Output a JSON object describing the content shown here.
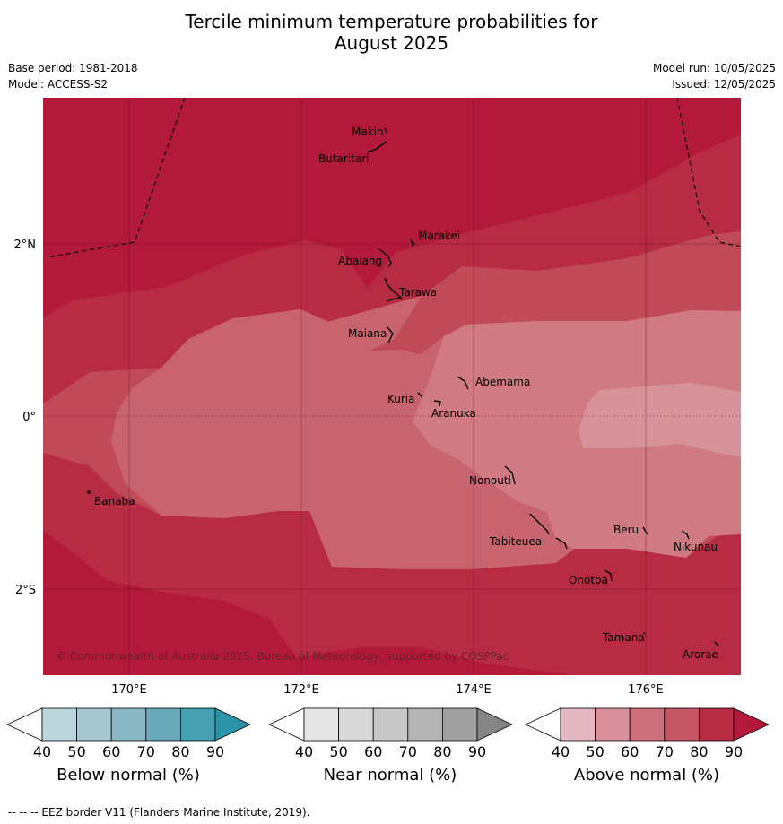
{
  "title_line1": "Tercile minimum temperature probabilities for",
  "title_line2": "August 2025",
  "base_period": "Base period: 1981-2018",
  "model": "Model: ACCESS-S2",
  "model_run": "Model run: 10/05/2025",
  "issued": "Issued: 12/05/2025",
  "copyright": "© Commonwealth of Australia 2025, Bureau of Meteorology, supported by COSPPac",
  "footer": "--  --  -- EEZ border V11 (Flanders Marine Institute, 2019).",
  "lat_labels": [
    "2°N",
    "0°",
    "2°S"
  ],
  "lon_labels": [
    "170°E",
    "172°E",
    "174°E",
    "176°E"
  ],
  "places": [
    {
      "name": "Makin",
      "lon": 173.0,
      "lat": 3.4
    },
    {
      "name": "Butaritari",
      "lon": 172.9,
      "lat": 3.05
    },
    {
      "name": "Marakei",
      "lon": 173.4,
      "lat": 2.05
    },
    {
      "name": "Abaiang",
      "lon": 172.95,
      "lat": 1.8
    },
    {
      "name": "Tarawa",
      "lon": 173.15,
      "lat": 1.4
    },
    {
      "name": "Maiana",
      "lon": 173.0,
      "lat": 0.95
    },
    {
      "name": "Abemama",
      "lon": 173.9,
      "lat": 0.38
    },
    {
      "name": "Kuria",
      "lon": 173.4,
      "lat": 0.22
    },
    {
      "name": "Aranuka",
      "lon": 173.6,
      "lat": 0.16
    },
    {
      "name": "Nonouti",
      "lon": 174.4,
      "lat": -0.65
    },
    {
      "name": "Banaba",
      "lon": 169.55,
      "lat": -0.86
    },
    {
      "name": "Tabiteuea",
      "lon": 174.8,
      "lat": -1.3
    },
    {
      "name": "Beru",
      "lon": 175.98,
      "lat": -1.35
    },
    {
      "name": "Nikunau",
      "lon": 176.45,
      "lat": -1.37
    },
    {
      "name": "Onotoa",
      "lon": 175.55,
      "lat": -1.8
    },
    {
      "name": "Tamana",
      "lon": 175.97,
      "lat": -2.5
    },
    {
      "name": "Arorae",
      "lon": 176.8,
      "lat": -2.65
    }
  ],
  "colorbars": [
    {
      "label": "Below normal (%)",
      "ticks": [
        "40",
        "50",
        "60",
        "70",
        "80",
        "90"
      ],
      "colors": [
        "#ffffff",
        "#bcd4dc",
        "#a5c7cf",
        "#8ab8c4",
        "#6aa9b9",
        "#47a0b2",
        "#2a93a8"
      ]
    },
    {
      "label": "Near normal (%)",
      "ticks": [
        "40",
        "50",
        "60",
        "70",
        "80",
        "90"
      ],
      "colors": [
        "#ffffff",
        "#e6e6e6",
        "#d8d8d8",
        "#c8c8c8",
        "#b4b4b4",
        "#a0a0a0",
        "#858585"
      ]
    },
    {
      "label": "Above normal (%)",
      "ticks": [
        "40",
        "50",
        "60",
        "70",
        "80",
        "90"
      ],
      "colors": [
        "#ffffff",
        "#e3b7c0",
        "#d8919c",
        "#ce707c",
        "#c45563",
        "#b72c44",
        "#b2193a"
      ]
    }
  ]
}
